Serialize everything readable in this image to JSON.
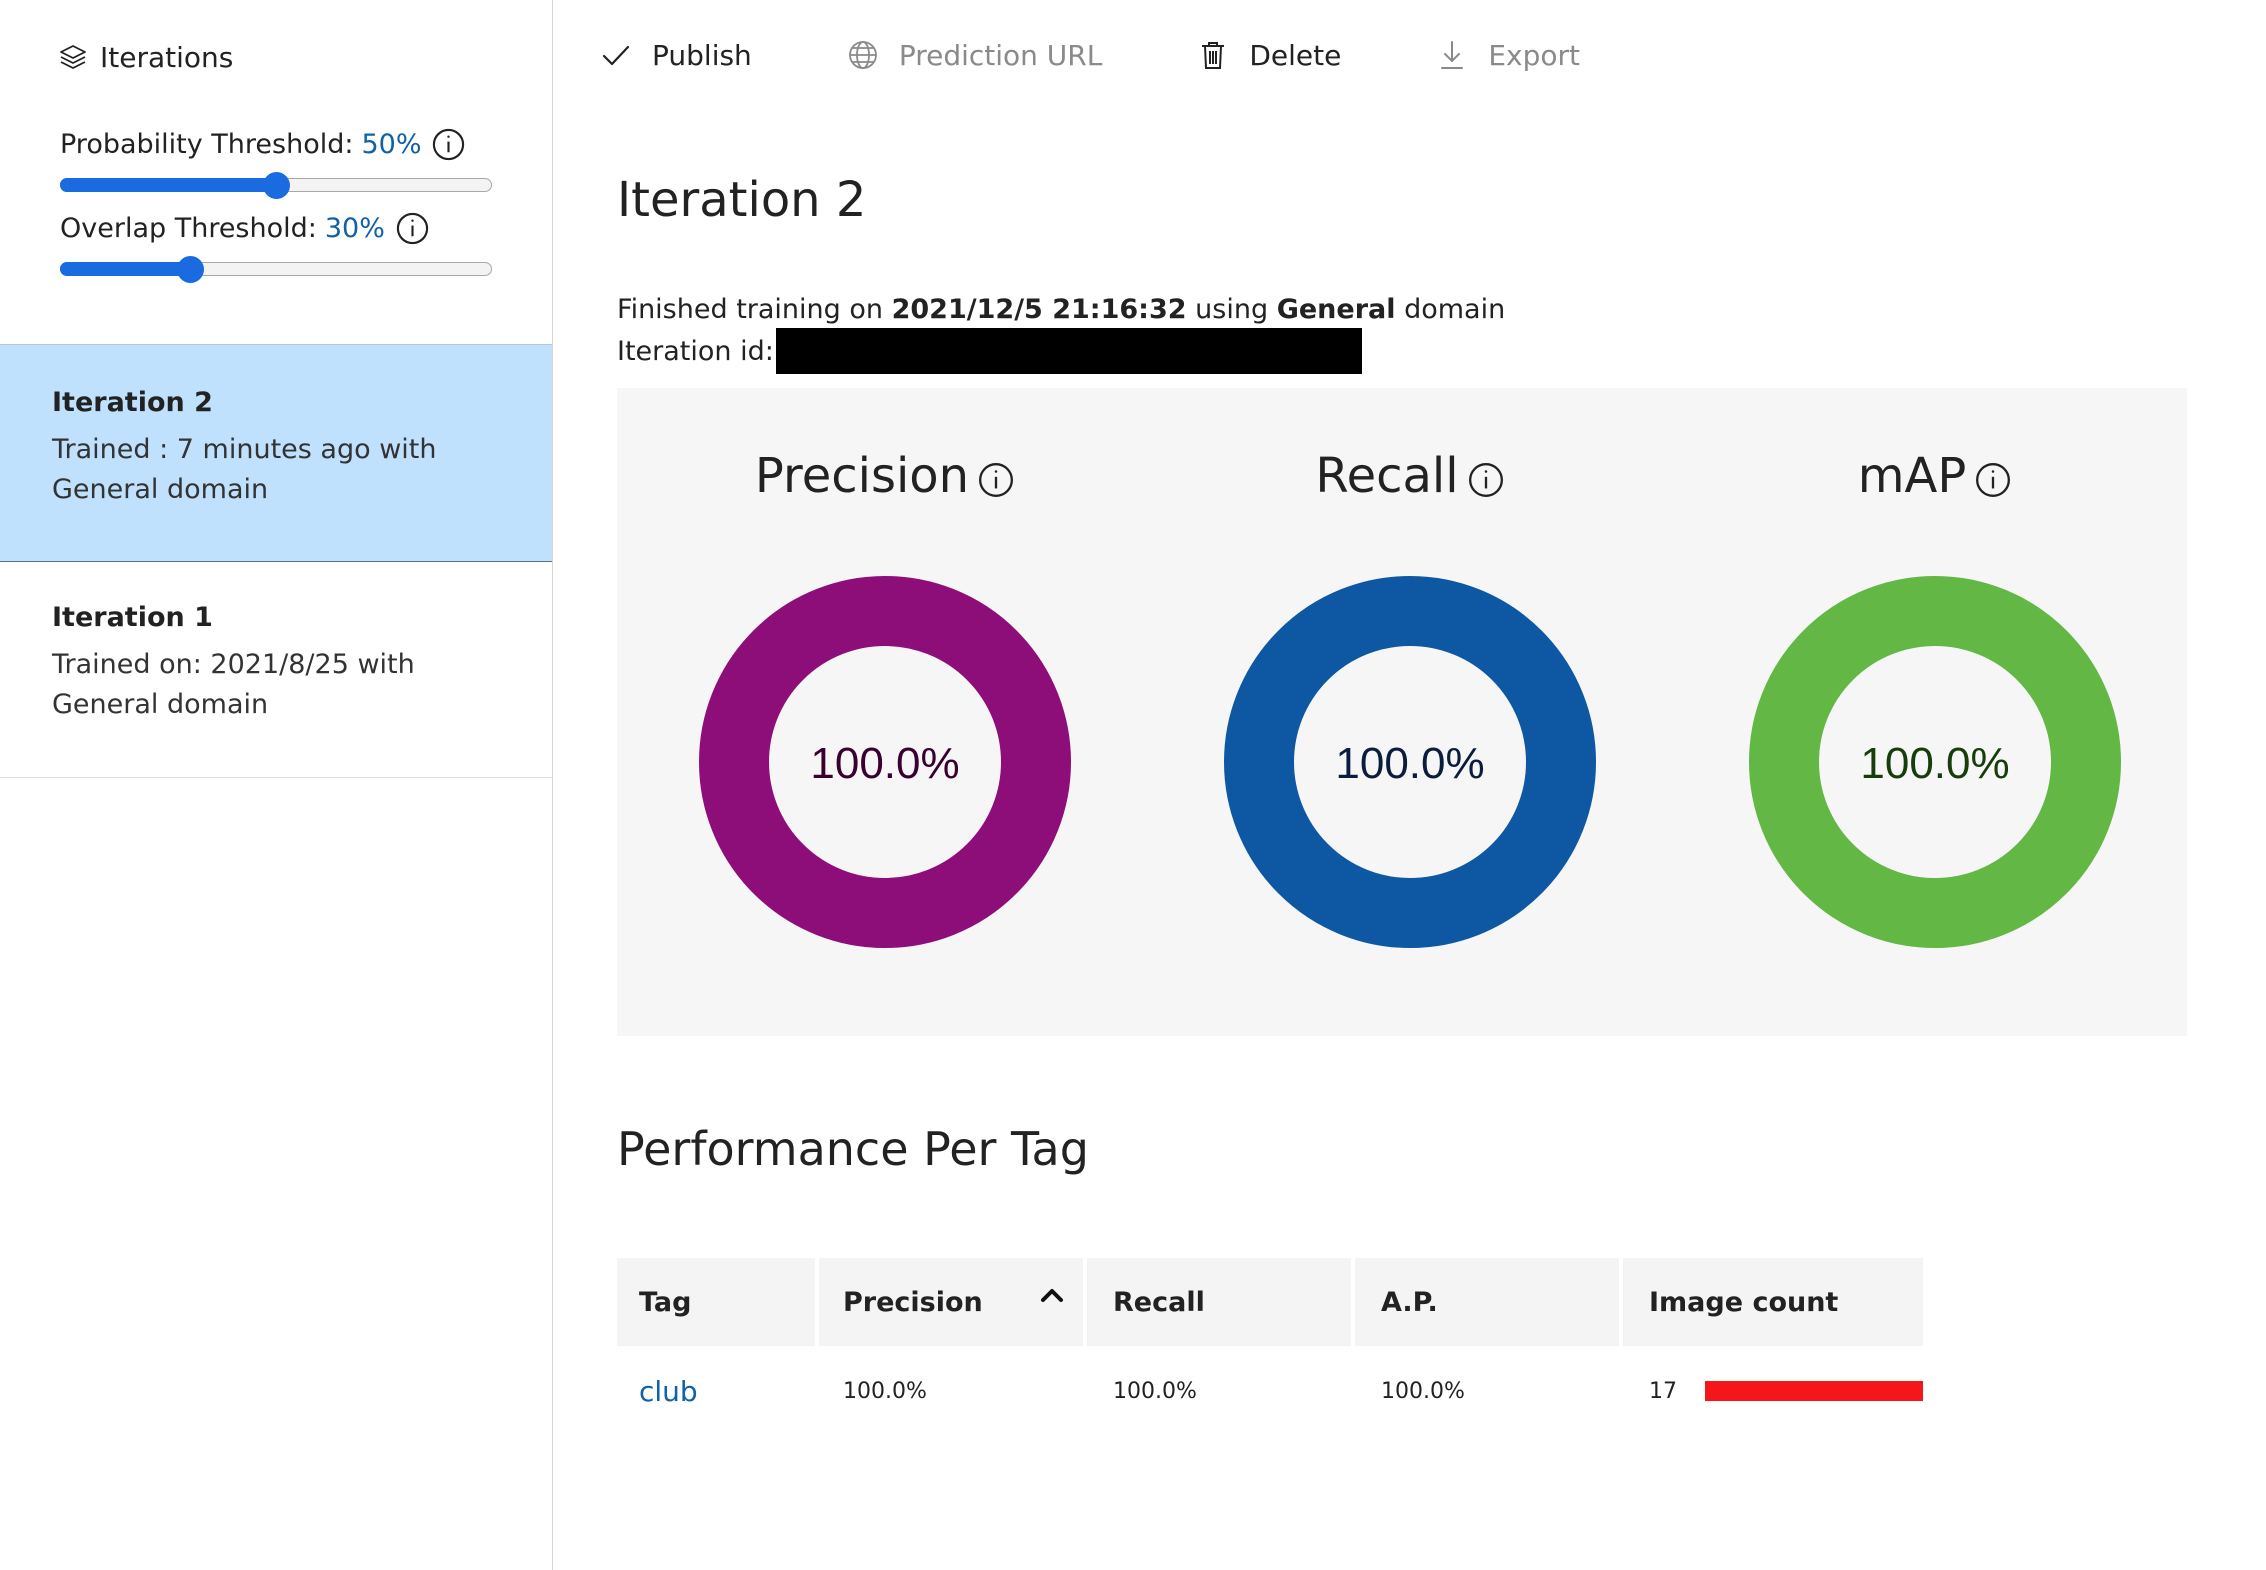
{
  "sidebar": {
    "title": "Iterations",
    "probability": {
      "label": "Probability Threshold:",
      "value": "50%",
      "fraction": 0.5
    },
    "overlap": {
      "label": "Overlap Threshold:",
      "value": "30%",
      "fraction": 0.3
    },
    "iterations": [
      {
        "name": "Iteration 2",
        "desc": "Trained : 7 minutes ago with General domain",
        "selected": true
      },
      {
        "name": "Iteration 1",
        "desc": "Trained on: 2021/8/25 with General domain",
        "selected": false
      }
    ]
  },
  "toolbar": {
    "publish": "Publish",
    "prediction_url": "Prediction URL",
    "delete": "Delete",
    "export": "Export"
  },
  "main": {
    "title": "Iteration 2",
    "finished_prefix": "Finished training on",
    "finished_date": "2021/12/5 21:16:32",
    "finished_middle": "using",
    "finished_domain": "General",
    "finished_suffix": "domain",
    "iteration_id_label": "Iteration id:"
  },
  "chart_data": [
    {
      "type": "pie",
      "title": "Precision",
      "values": [
        100.0
      ],
      "label": "100.0%",
      "color": "#8d0e78",
      "text_color": "#3a0030"
    },
    {
      "type": "pie",
      "title": "Recall",
      "values": [
        100.0
      ],
      "label": "100.0%",
      "color": "#0e58a3",
      "text_color": "#0a1d3d"
    },
    {
      "type": "pie",
      "title": "mAP",
      "values": [
        100.0
      ],
      "label": "100.0%",
      "color": "#63b845",
      "text_color": "#163d0a"
    }
  ],
  "performance": {
    "title": "Performance Per Tag",
    "columns": [
      "Tag",
      "Precision",
      "Recall",
      "A.P.",
      "Image count"
    ],
    "rows": [
      {
        "tag": "club",
        "precision": "100.0%",
        "recall": "100.0%",
        "ap": "100.0%",
        "image_count": "17",
        "bar_color": "#f5161b"
      }
    ]
  },
  "icons": {
    "iterations": "layers-icon",
    "info": "info-icon",
    "publish": "checkmark-icon",
    "prediction_url": "globe-icon",
    "delete": "trash-icon",
    "export": "download-icon",
    "sort": "chevron-up-icon"
  }
}
